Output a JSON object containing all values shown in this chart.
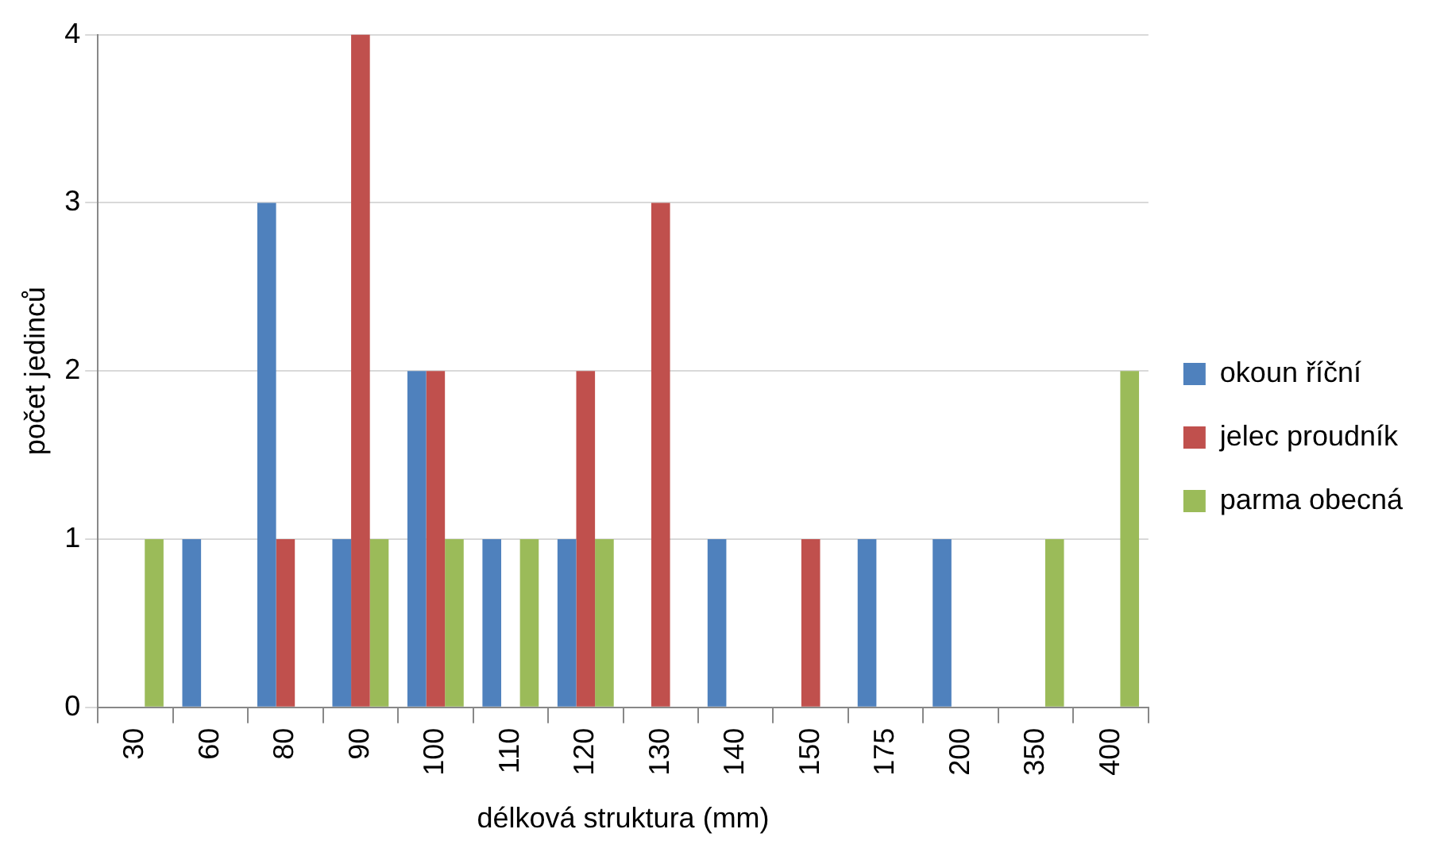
{
  "chart_data": {
    "type": "bar",
    "xlabel": "délková struktura (mm)",
    "ylabel": "počet jedinců",
    "categories": [
      "30",
      "60",
      "80",
      "90",
      "100",
      "110",
      "120",
      "130",
      "140",
      "150",
      "175",
      "200",
      "350",
      "400"
    ],
    "series": [
      {
        "name": "okoun říční",
        "color": "#4f81bd",
        "values": [
          0,
          1,
          3,
          1,
          2,
          1,
          1,
          0,
          1,
          0,
          1,
          1,
          0,
          0
        ]
      },
      {
        "name": "jelec proudník",
        "color": "#c0504d",
        "values": [
          0,
          0,
          1,
          4,
          2,
          0,
          2,
          3,
          0,
          1,
          0,
          0,
          0,
          0
        ]
      },
      {
        "name": "parma obecná",
        "color": "#9bbb59",
        "values": [
          1,
          0,
          0,
          1,
          1,
          1,
          1,
          0,
          0,
          0,
          0,
          0,
          1,
          2
        ]
      }
    ],
    "ylim": [
      0,
      4
    ],
    "yticks": [
      0,
      1,
      2,
      3,
      4
    ],
    "grid": "y",
    "legend": "right"
  }
}
